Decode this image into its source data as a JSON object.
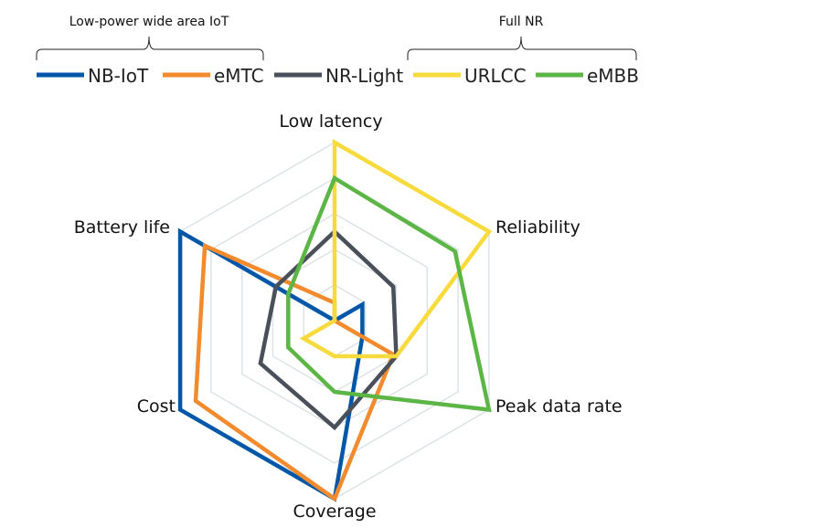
{
  "chart_data": {
    "type": "radar",
    "axes": [
      "Low latency",
      "Reliability",
      "Peak data rate",
      "Coverage",
      "Cost",
      "Battery life"
    ],
    "scale": {
      "min": 0,
      "max": 5,
      "rings": 5
    },
    "grid": true,
    "legend_groups": [
      {
        "label": "Low-power wide area IoT",
        "series": [
          "NB-IoT",
          "eMTC"
        ]
      },
      {
        "label": "Full NR",
        "series": [
          "URLCC",
          "eMBB"
        ]
      }
    ],
    "series": [
      {
        "name": "NB-IoT",
        "color": "#0057a8",
        "values": [
          0,
          0.9,
          0.9,
          5,
          5,
          5
        ]
      },
      {
        "name": "eMTC",
        "color": "#f28a2e",
        "values": [
          0.5,
          0,
          1.9,
          5,
          4.5,
          4.2
        ]
      },
      {
        "name": "NR-Light",
        "color": "#4a5059",
        "values": [
          2.5,
          1.9,
          2.0,
          3.0,
          2.4,
          1.9
        ]
      },
      {
        "name": "URLCC",
        "color": "#f7da3c",
        "values": [
          5,
          5,
          2.0,
          1.0,
          1.0,
          0
        ]
      },
      {
        "name": "eMBB",
        "color": "#5cb646",
        "values": [
          4.0,
          3.9,
          5,
          2.0,
          1.5,
          1.5
        ]
      }
    ]
  }
}
